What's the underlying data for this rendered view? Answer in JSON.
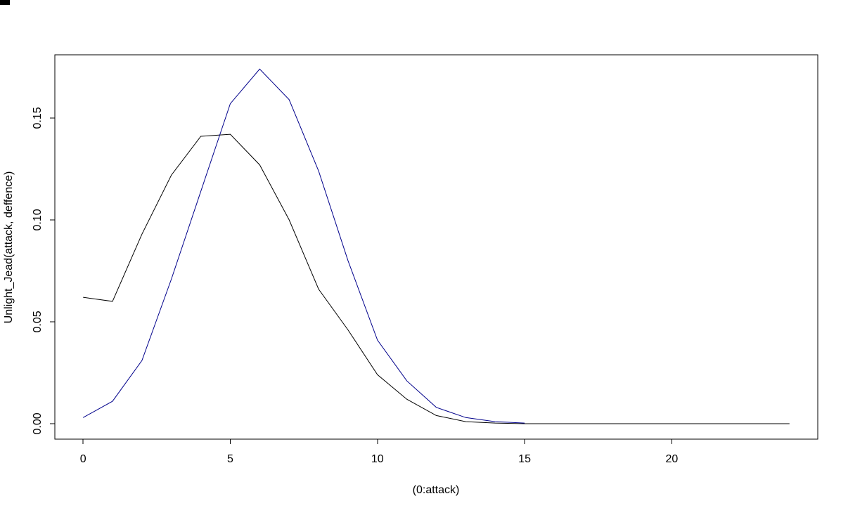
{
  "chart_data": {
    "type": "line",
    "title": "",
    "xlabel": "(0:attack)",
    "ylabel": "Unlight_Jead(attack, deffence)",
    "xlim": [
      -0.96,
      24.96
    ],
    "ylim": [
      -0.0076,
      0.181
    ],
    "grid": false,
    "legend_position": "none",
    "background_color": "#ffffff",
    "axis_color": "#000000",
    "x_ticks": {
      "values": [
        0,
        5,
        10,
        15,
        20
      ],
      "labels": [
        "0",
        "5",
        "10",
        "15",
        "20"
      ]
    },
    "y_ticks": {
      "values": [
        0.0,
        0.05,
        0.1,
        0.15
      ],
      "labels": [
        "0.00",
        "0.05",
        "0.10",
        "0.15"
      ]
    },
    "series": [
      {
        "name": "black-curve",
        "color": "#000000",
        "x": [
          0,
          1,
          2,
          3,
          4,
          5,
          6,
          7,
          8,
          9,
          10,
          11,
          12,
          13,
          14,
          15,
          16,
          17,
          18,
          19,
          20,
          21,
          22,
          23,
          24
        ],
        "values": [
          0.062,
          0.06,
          0.093,
          0.122,
          0.141,
          0.142,
          0.127,
          0.1,
          0.066,
          0.046,
          0.024,
          0.012,
          0.004,
          0.001,
          0.0003,
          0.0,
          0.0,
          0.0,
          0.0,
          0.0,
          0.0,
          0.0,
          0.0,
          0.0,
          0.0
        ]
      },
      {
        "name": "blue-curve",
        "color": "#00008B",
        "x": [
          0,
          1,
          2,
          3,
          4,
          5,
          6,
          7,
          8,
          9,
          10,
          11,
          12,
          13,
          14,
          15
        ],
        "values": [
          0.003,
          0.011,
          0.031,
          0.071,
          0.114,
          0.157,
          0.174,
          0.159,
          0.124,
          0.08,
          0.041,
          0.021,
          0.008,
          0.003,
          0.001,
          0.0003
        ]
      }
    ]
  }
}
